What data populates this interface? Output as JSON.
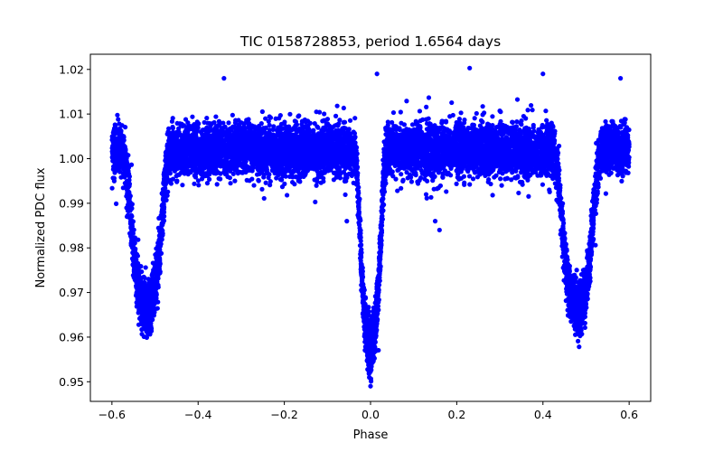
{
  "chart_data": {
    "type": "scatter",
    "title": "TIC 0158728853, period 1.6564 days",
    "xlabel": "Phase",
    "ylabel": "Normalized PDC flux",
    "xlim": [
      -0.65,
      0.65
    ],
    "ylim": [
      0.9456,
      1.0234
    ],
    "x_ticks": [
      -0.6,
      -0.4,
      -0.2,
      0.0,
      0.2,
      0.4,
      0.6
    ],
    "x_tick_labels": [
      "−0.6",
      "−0.4",
      "−0.2",
      "0.0",
      "0.2",
      "0.4",
      "0.6"
    ],
    "y_ticks": [
      0.95,
      0.96,
      0.97,
      0.98,
      0.99,
      1.0,
      1.01,
      1.02
    ],
    "y_tick_labels": [
      "0.95",
      "0.96",
      "0.97",
      "0.98",
      "0.99",
      "1.00",
      "1.01",
      "1.02"
    ],
    "grid": false,
    "legend": "none",
    "marker_color": "#0000ff",
    "data_x_range": [
      -0.6,
      0.6
    ],
    "continuum_flux": 1.002,
    "continuum_scatter": [
      0.995,
      1.01
    ],
    "eclipses": [
      {
        "name": "primary",
        "phase": 0.0,
        "min_flux": 0.949,
        "typical_min_flux": 0.958,
        "half_width_phase": 0.02
      },
      {
        "name": "secondary",
        "phase": -0.52,
        "min_flux": 0.962,
        "typical_min_flux": 0.966,
        "half_width_phase": 0.03
      },
      {
        "name": "secondary",
        "phase": 0.48,
        "min_flux": 0.962,
        "typical_min_flux": 0.966,
        "half_width_phase": 0.03
      }
    ],
    "outlier_points": [
      {
        "x": 0.23,
        "y": 1.0203
      },
      {
        "x": 0.4,
        "y": 1.019
      },
      {
        "x": -0.34,
        "y": 1.018
      },
      {
        "x": 0.58,
        "y": 1.018
      },
      {
        "x": 0.015,
        "y": 1.019
      },
      {
        "x": 0.15,
        "y": 0.986
      },
      {
        "x": 0.16,
        "y": 0.984
      },
      {
        "x": -0.565,
        "y": 0.987
      },
      {
        "x": -0.055,
        "y": 0.986
      }
    ]
  }
}
